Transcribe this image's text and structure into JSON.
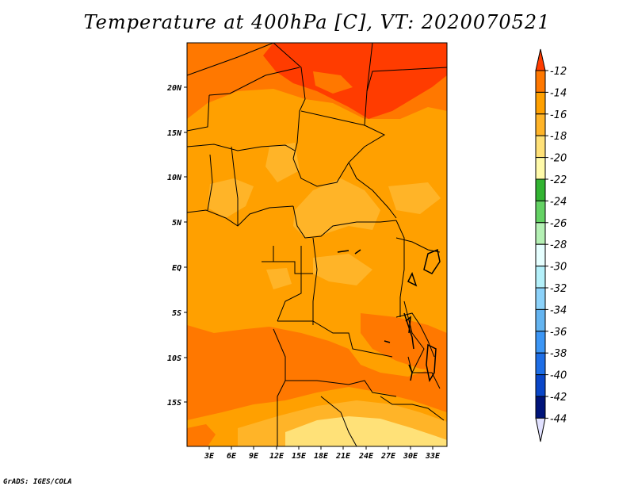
{
  "title": "Temperature at 400hPa [C], VT: 2020070521",
  "credit": "GrADS: IGES/COLA",
  "axes": {
    "x_ticks": [
      "3E",
      "6E",
      "9E",
      "12E",
      "15E",
      "18E",
      "21E",
      "24E",
      "27E",
      "30E",
      "33E"
    ],
    "y_ticks": [
      "20N",
      "15N",
      "10N",
      "5N",
      "EQ",
      "5S",
      "10S",
      "15S"
    ]
  },
  "colorbar": {
    "levels": [
      "-12",
      "-14",
      "-16",
      "-18",
      "-20",
      "-22",
      "-24",
      "-26",
      "-28",
      "-30",
      "-32",
      "-34",
      "-36",
      "-38",
      "-40",
      "-42",
      "-44"
    ],
    "colors": [
      "#ff3c00",
      "#ff7800",
      "#ffa000",
      "#ffb428",
      "#ffe178",
      "#fffaaa",
      "#32b432",
      "#64d264",
      "#b4f0b4",
      "#e6ffff",
      "#b4f0fa",
      "#8cd2fa",
      "#64b4f0",
      "#3c96f5",
      "#1e6ee6",
      "#0a46c8",
      "#00147a",
      "#e1e1ff"
    ]
  }
}
